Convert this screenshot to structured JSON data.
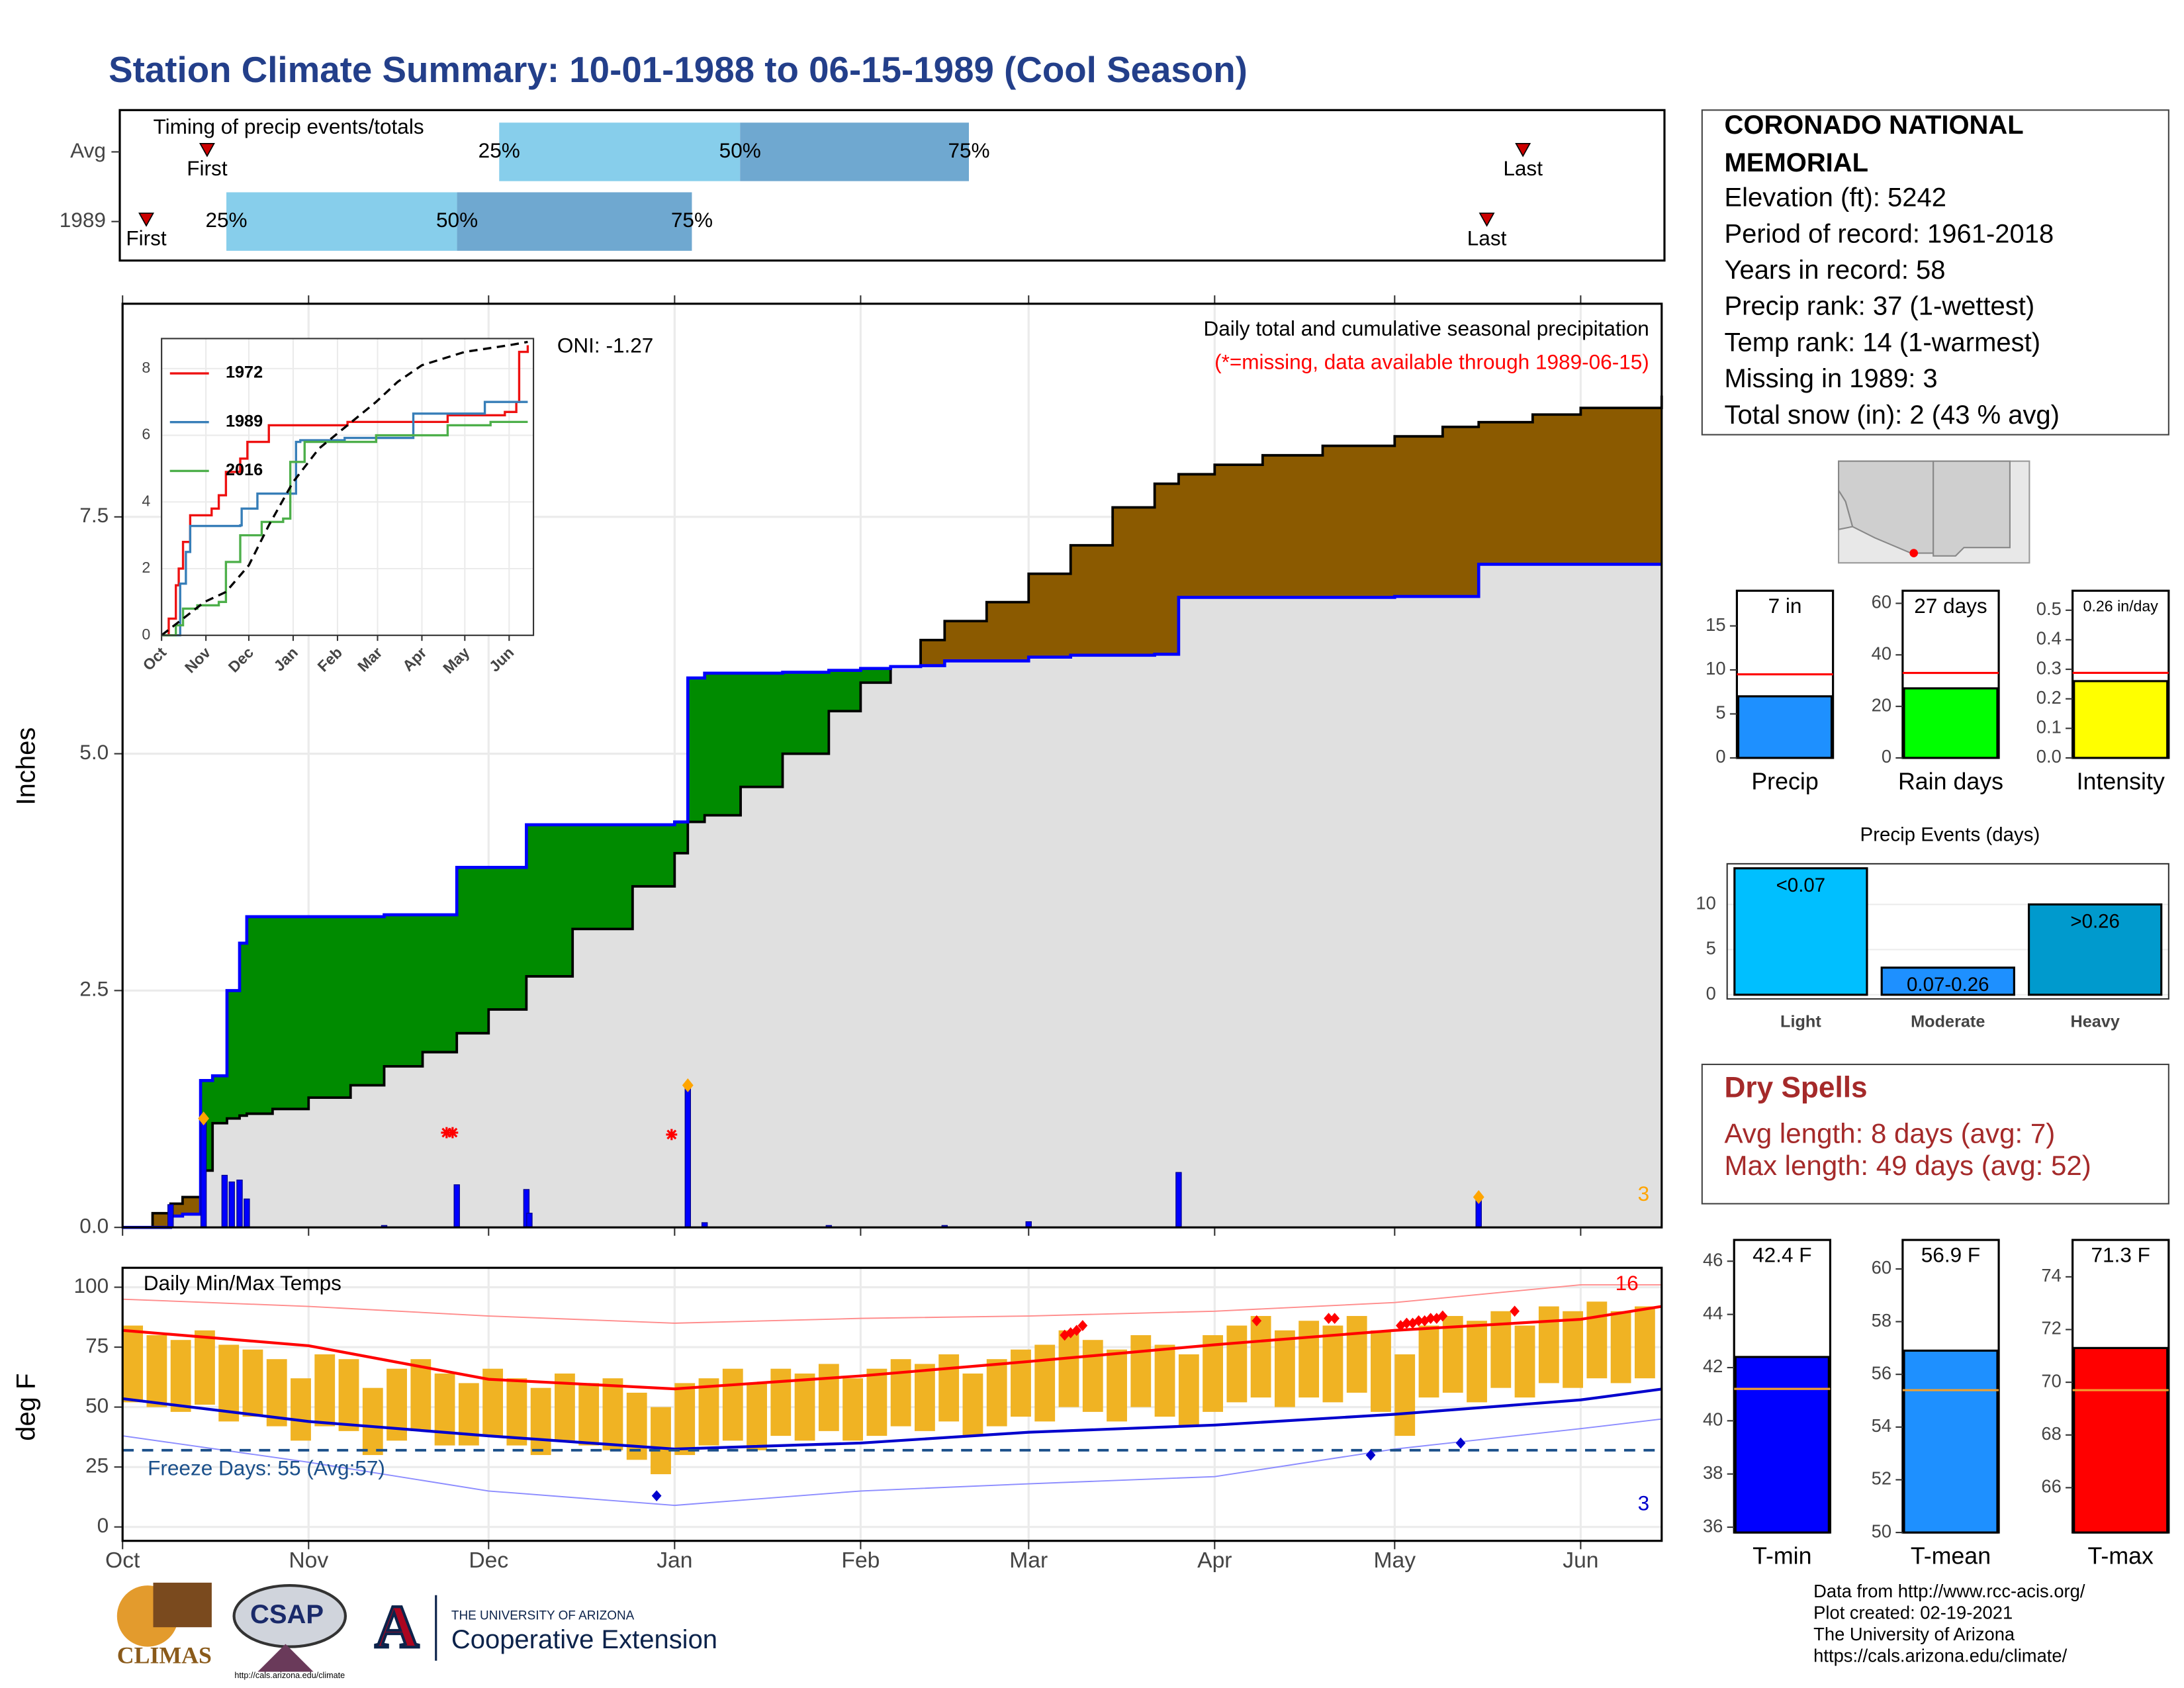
{
  "title": "Station Climate Summary: 10-01-1988 to 06-15-1989 (Cool Season)",
  "station": {
    "name_lines": [
      "CORONADO NATIONAL",
      "MEMORIAL"
    ],
    "lines": [
      "Elevation (ft): 5242",
      "Period of record: 1961-2018",
      "Years in record: 58",
      "Precip rank: 37 (1-wettest)",
      "Temp rank: 14 (1-warmest)",
      "Missing in 1989: 3",
      "Total snow (in): 2 (43 % avg)"
    ]
  },
  "dry_spells": {
    "title": "Dry Spells",
    "lines": [
      "Avg length: 8 days (avg: 7)",
      "Max length: 49 days (avg: 52)"
    ]
  },
  "footer": {
    "lines": [
      "Data from http://www.rcc-acis.org/",
      "Plot created: 02-19-2021",
      "The University of Arizona",
      "https://cals.arizona.edu/climate/"
    ]
  },
  "logos": {
    "climas": "CLIMAS",
    "csap": "CSAP",
    "csap_url": "http://cals.arizona.edu/climate",
    "ua_mark": "A",
    "ua_name": "THE UNIVERSITY OF ARIZONA",
    "ua_unit": "Cooperative Extension"
  },
  "chart_data": [
    {
      "type": "timing",
      "title": "Timing of precip events/totals",
      "categories": [
        "Avg",
        "1989"
      ],
      "series": [
        {
          "name": "First",
          "values": [
            14.5,
            4.4
          ]
        },
        {
          "name": "25%",
          "values": [
            63,
            17.7
          ]
        },
        {
          "name": "50%",
          "values": [
            103,
            56
          ]
        },
        {
          "name": "75%",
          "values": [
            141,
            95
          ]
        },
        {
          "name": "Last",
          "values": [
            233,
            227
          ]
        }
      ],
      "colors": [
        "#87ceeb",
        "#6fa8d0"
      ],
      "marker_color": "#cc0000",
      "xlim": [
        0,
        256.5
      ]
    },
    {
      "type": "cumulative",
      "title": "Daily total and cumulative seasonal precipitation",
      "subtitle": "(*=missing, data available through 1989-06-15)",
      "annotation": "ONI: -1.27",
      "ylabel": "Inches",
      "x": [
        0,
        5,
        8,
        10,
        13,
        15,
        17.4,
        19.5,
        20.7,
        25,
        31,
        38,
        43.6,
        50,
        55.7,
        61,
        67.3,
        75,
        85,
        92,
        94.2,
        97,
        103,
        110,
        117.7,
        123,
        128,
        133,
        137,
        144,
        151,
        158,
        165,
        172,
        176,
        182,
        190,
        200,
        212,
        220,
        226,
        235,
        243,
        256.5
      ],
      "series": [
        {
          "name": "1989",
          "color": "#0000ff",
          "values": [
            0,
            0,
            0.12,
            0.14,
            1.55,
            1.6,
            2.5,
            3.0,
            3.28,
            3.28,
            3.28,
            3.28,
            3.3,
            3.3,
            3.8,
            3.8,
            4.25,
            4.25,
            4.25,
            4.28,
            5.8,
            5.85,
            5.85,
            5.86,
            5.88,
            5.9,
            5.92,
            5.93,
            5.98,
            5.98,
            6.02,
            6.04,
            6.04,
            6.05,
            6.65,
            6.65,
            6.65,
            6.65,
            6.66,
            6.66,
            7.0,
            7.0,
            7.0,
            7.0
          ]
        },
        {
          "color": "#000000",
          "values": [
            0,
            0.15,
            0.25,
            0.32,
            0.6,
            1.1,
            1.15,
            1.18,
            1.2,
            1.25,
            1.37,
            1.5,
            1.7,
            1.85,
            2.05,
            2.3,
            2.65,
            3.15,
            3.6,
            3.95,
            4.28,
            4.35,
            4.65,
            5.0,
            5.45,
            5.75,
            5.92,
            6.2,
            6.4,
            6.6,
            6.9,
            7.2,
            7.6,
            7.85,
            7.95,
            8.05,
            8.15,
            8.25,
            8.35,
            8.45,
            8.5,
            8.58,
            8.65,
            8.78
          ]
        }
      ],
      "fill_colors": {
        "wetter": "#008b00",
        "drier": "#8b5a00",
        "base": "#e0e0e0"
      },
      "daily": {
        "color": "#0000ff",
        "x": [
          8,
          13.5,
          17,
          18.2,
          19.5,
          20.7,
          43.6,
          55.7,
          67.3,
          67.8,
          94.2,
          97,
          117.7,
          137,
          151,
          176,
          226
        ],
        "values": [
          0.24,
          1.15,
          0.55,
          0.48,
          0.5,
          0.3,
          0.02,
          0.45,
          0.4,
          0.15,
          1.5,
          0.05,
          0.02,
          0.02,
          0.06,
          0.58,
          0.32
        ]
      },
      "extremes": {
        "x": [
          13.5,
          94.2,
          226
        ],
        "count": 3,
        "color": "#ffa500"
      },
      "missing": {
        "x": [
          54,
          55,
          91.5
        ],
        "values": [
          1.0,
          1.0,
          0.98
        ],
        "color": "#ff0000"
      },
      "xlim": [
        0,
        256.5
      ],
      "xticks": [
        0,
        31,
        61,
        92,
        123,
        151,
        182,
        212,
        243
      ],
      "ylim": [
        0,
        9.75
      ],
      "yticks": [
        {
          "value": 0,
          "label": "0.0"
        },
        2.5,
        {
          "value": 5,
          "label": "5.0"
        },
        7.5
      ],
      "grid": true
    },
    {
      "type": "line",
      "xlim": [
        0,
        260
      ],
      "ylim": [
        0,
        8.9
      ],
      "yticks": [
        0,
        2,
        4,
        6,
        8
      ],
      "xticks": [
        {
          "value": 0,
          "label": "Oct"
        },
        {
          "value": 31,
          "label": "Nov"
        },
        {
          "value": 61,
          "label": "Dec"
        },
        {
          "value": 92,
          "label": "Jan"
        },
        {
          "value": 123,
          "label": "Feb"
        },
        {
          "value": 151,
          "label": "Mar"
        },
        {
          "value": 182,
          "label": "Apr"
        },
        {
          "value": 212,
          "label": "May"
        },
        {
          "value": 243,
          "label": "Jun"
        }
      ],
      "series": [
        {
          "name": "1972",
          "color": "#ee1111",
          "x": [
            0,
            5,
            10,
            12,
            15,
            20,
            30,
            35,
            40,
            45,
            55,
            60,
            75,
            92,
            130,
            175,
            200,
            240,
            248,
            250,
            256
          ],
          "values": [
            0,
            0.5,
            1.5,
            2.0,
            2.8,
            3.6,
            3.6,
            3.8,
            4.2,
            4.9,
            5.3,
            5.8,
            6.3,
            6.3,
            6.4,
            6.4,
            6.6,
            6.7,
            7.0,
            8.5,
            8.7
          ]
        },
        {
          "name": "1989",
          "color": "#377eb8",
          "x": [
            0,
            13,
            17,
            20,
            55,
            56,
            67,
            94,
            97,
            128,
            176,
            226,
            256
          ],
          "values": [
            0,
            1.55,
            2.5,
            3.28,
            3.3,
            3.8,
            4.25,
            5.8,
            5.85,
            5.92,
            6.65,
            7.0,
            7.0
          ]
        },
        {
          "name": "2016",
          "color": "#4daf4a",
          "x": [
            0,
            10,
            15,
            25,
            40,
            45,
            55,
            70,
            85,
            90,
            100,
            120,
            150,
            200,
            230,
            256
          ],
          "values": [
            0,
            0.3,
            0.8,
            0.9,
            1.0,
            2.2,
            3.0,
            3.4,
            3.5,
            5.2,
            5.8,
            5.8,
            6.0,
            6.3,
            6.4,
            6.4
          ]
        },
        {
          "color": "#000000",
          "dashed": true,
          "x": [
            0,
            15,
            30,
            45,
            61,
            75,
            92,
            110,
            130,
            150,
            165,
            182,
            212,
            243,
            256
          ],
          "values": [
            0,
            0.5,
            1.0,
            1.3,
            2.1,
            3.3,
            4.6,
            5.6,
            6.3,
            7.0,
            7.6,
            8.1,
            8.5,
            8.7,
            8.8
          ]
        }
      ],
      "grid": true
    },
    {
      "type": "bar",
      "categories": [
        "Precip"
      ],
      "values": [
        7
      ],
      "value_labels": [
        "7 in"
      ],
      "average": 9.5,
      "average_color": "#ff0000",
      "color": "#1e90ff",
      "ylim": [
        0,
        19
      ],
      "yticks": [
        0,
        5,
        10,
        15
      ]
    },
    {
      "type": "bar",
      "categories": [
        "Rain days"
      ],
      "values": [
        27
      ],
      "value_labels": [
        "27 days"
      ],
      "average": 33,
      "average_color": "#ff0000",
      "color": "#00ff00",
      "ylim": [
        0,
        64.9
      ],
      "yticks": [
        0,
        20,
        40,
        60
      ]
    },
    {
      "type": "bar",
      "categories": [
        "Intensity"
      ],
      "values": [
        0.26
      ],
      "value_labels": [
        "0.26 in/day"
      ],
      "average": 0.288,
      "average_color": "#ff0000",
      "color": "#ffff00",
      "ylim": [
        0,
        0.566
      ],
      "yticks": [
        {
          "value": 0,
          "label": "0.0"
        },
        0.1,
        0.2,
        0.3,
        0.4,
        0.5
      ]
    },
    {
      "type": "events",
      "title": "Precip Events (days)",
      "categories": [
        "Light",
        "Moderate",
        "Heavy"
      ],
      "values": [
        14,
        3,
        10
      ],
      "thresholds": [
        "<0.07",
        "0.07-0.26",
        ">0.26"
      ],
      "colors": [
        "#00bfff",
        "#1e90ff",
        "#009acd"
      ],
      "ylim": [
        0,
        14.5
      ],
      "yticks": [
        0,
        5,
        10
      ],
      "grid": true
    },
    {
      "type": "temps",
      "title": "Daily Min/Max Temps",
      "ylabel": "deg F",
      "x": [
        0,
        4,
        8,
        12,
        16,
        20,
        24,
        28,
        32,
        36,
        40,
        44,
        48,
        52,
        56,
        60,
        64,
        68,
        72,
        76,
        80,
        84,
        88,
        92,
        96,
        100,
        104,
        108,
        112,
        116,
        120,
        124,
        128,
        132,
        136,
        140,
        144,
        148,
        152,
        156,
        160,
        164,
        168,
        172,
        176,
        180,
        184,
        188,
        192,
        196,
        200,
        204,
        208,
        212,
        216,
        220,
        224,
        228,
        232,
        236,
        240,
        244,
        248,
        252
      ],
      "max": [
        84,
        80,
        78,
        82,
        76,
        74,
        70,
        62,
        72,
        70,
        58,
        66,
        70,
        64,
        60,
        66,
        62,
        58,
        64,
        60,
        62,
        56,
        50,
        60,
        62,
        66,
        60,
        66,
        64,
        68,
        62,
        66,
        70,
        68,
        72,
        64,
        70,
        74,
        76,
        82,
        78,
        74,
        80,
        76,
        72,
        80,
        84,
        88,
        82,
        86,
        84,
        88,
        82,
        72,
        84,
        88,
        86,
        90,
        84,
        92,
        90,
        94,
        90,
        92
      ],
      "min": [
        52,
        50,
        48,
        51,
        44,
        46,
        42,
        36,
        42,
        40,
        30,
        36,
        40,
        34,
        34,
        38,
        34,
        30,
        36,
        34,
        32,
        28,
        22,
        30,
        34,
        36,
        32,
        38,
        36,
        40,
        36,
        38,
        42,
        40,
        44,
        38,
        42,
        46,
        44,
        50,
        48,
        44,
        50,
        46,
        42,
        48,
        52,
        54,
        50,
        54,
        52,
        56,
        48,
        38,
        54,
        56,
        52,
        58,
        54,
        60,
        58,
        62,
        60,
        62
      ],
      "bar_color": "#f0b323",
      "normals": {
        "x": [
          0,
          31,
          61,
          92,
          123,
          151,
          182,
          212,
          243,
          256.5
        ],
        "max": [
          82,
          75.6,
          61.6,
          57.6,
          63,
          69,
          76,
          82,
          86.6,
          92
        ],
        "min": [
          53.5,
          44,
          38,
          32.5,
          35,
          39.5,
          42.5,
          47,
          53,
          57.5
        ],
        "record_max": [
          95,
          92,
          88,
          85,
          87,
          88,
          90,
          93.6,
          101,
          101
        ],
        "record_min": [
          38,
          27,
          15,
          9,
          15,
          18,
          21,
          32.5,
          41,
          45
        ],
        "colors": [
          "#ff0000",
          "#0000cd",
          "#ff8c8c",
          "#8c8cff"
        ]
      },
      "record_highs": {
        "x": [
          157,
          158,
          159,
          160,
          189,
          201,
          202,
          213,
          214,
          215,
          216,
          217,
          218,
          219,
          220,
          232
        ],
        "values": [
          80,
          81,
          82,
          84,
          86,
          87,
          87,
          84,
          85,
          85,
          86,
          86,
          87,
          87,
          88,
          90
        ],
        "count": 16,
        "color": "#ff0000"
      },
      "record_lows": {
        "x": [
          89,
          208,
          223
        ],
        "values": [
          13,
          30,
          35
        ],
        "count": 3,
        "color": "#0000cd"
      },
      "freeze": {
        "value": 32,
        "label": "Freeze Days: 55 (Avg:57)",
        "color": "#1a4f8a"
      },
      "xlim": [
        0,
        256.5
      ],
      "ylim": [
        -5.8,
        108.1
      ],
      "xticks": [
        {
          "value": 0,
          "label": "Oct"
        },
        {
          "value": 31,
          "label": "Nov"
        },
        {
          "value": 61,
          "label": "Dec"
        },
        {
          "value": 92,
          "label": "Jan"
        },
        {
          "value": 123,
          "label": "Feb"
        },
        {
          "value": 151,
          "label": "Mar"
        },
        {
          "value": 182,
          "label": "Apr"
        },
        {
          "value": 212,
          "label": "May"
        },
        {
          "value": 243,
          "label": "Jun"
        }
      ],
      "yticks": [
        0,
        25,
        50,
        75,
        100
      ],
      "grid": true
    },
    {
      "type": "bar",
      "categories": [
        "T-min"
      ],
      "values": [
        42.4
      ],
      "value_labels": [
        "42.4 F"
      ],
      "average": 41.2,
      "average_color": "#f0a030",
      "color": "#0000ff",
      "ylim": [
        35.8,
        46.8
      ],
      "yticks": [
        36,
        38,
        40,
        42,
        44,
        46
      ]
    },
    {
      "type": "bar",
      "categories": [
        "T-mean"
      ],
      "values": [
        56.9
      ],
      "value_labels": [
        "56.9 F"
      ],
      "average": 55.4,
      "average_color": "#f0a030",
      "color": "#1e90ff",
      "ylim": [
        50,
        61.1
      ],
      "yticks": [
        50,
        52,
        54,
        56,
        58,
        60
      ]
    },
    {
      "type": "bar",
      "categories": [
        "T-max"
      ],
      "values": [
        71.3
      ],
      "value_labels": [
        "71.3 F"
      ],
      "average": 69.7,
      "average_color": "#f0a030",
      "color": "#ff0000",
      "ylim": [
        64.3,
        75.4
      ],
      "yticks": [
        66,
        68,
        70,
        72,
        74
      ]
    }
  ]
}
